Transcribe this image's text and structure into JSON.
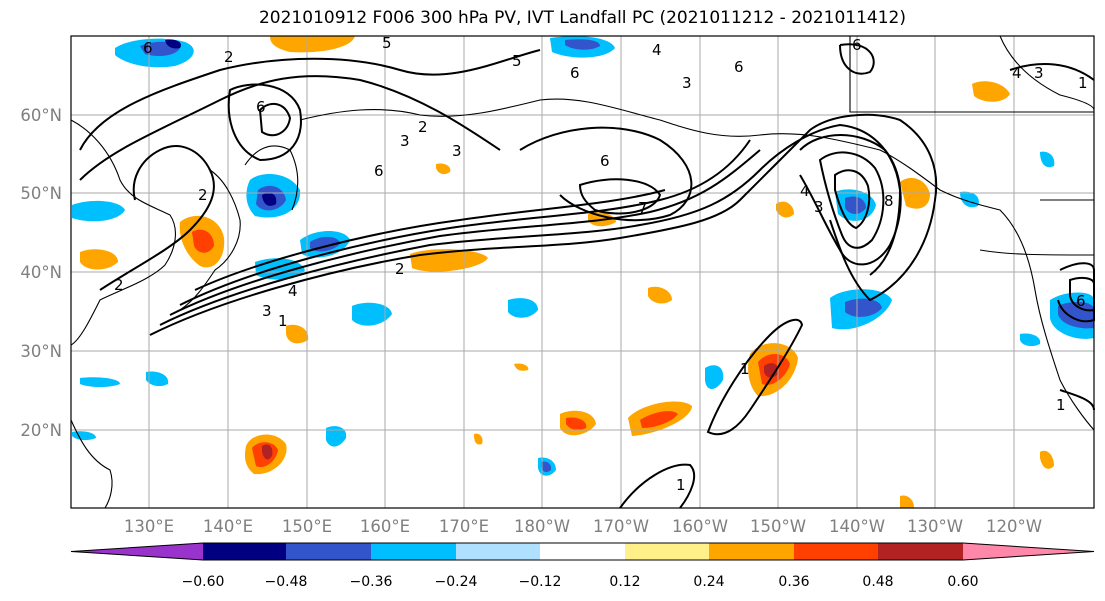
{
  "title": "2021010912 F006 300 hPa PV, IVT Landfall PC (2021011212 - 2021011412)",
  "map": {
    "lon_labels": [
      "130°E",
      "140°E",
      "150°E",
      "160°E",
      "170°E",
      "180°W",
      "170°W",
      "160°W",
      "150°W",
      "140°W",
      "130°W",
      "120°W"
    ],
    "lat_labels": [
      "60°N",
      "50°N",
      "40°N",
      "30°N",
      "20°N"
    ]
  },
  "colorbar": {
    "colors": [
      "#9933cc",
      "#000080",
      "#3355cc",
      "#00bfff",
      "#b0e0ff",
      "#ffffff",
      "#fff08a",
      "#ffa500",
      "#ff4000",
      "#b22222",
      "#ff88aa"
    ],
    "tick_labels": [
      "−0.60",
      "−0.48",
      "−0.36",
      "−0.24",
      "−0.12",
      "0.12",
      "0.24",
      "0.36",
      "0.48",
      "0.60"
    ]
  },
  "contour_labels": [
    "6",
    "2",
    "5",
    "6",
    "4",
    "3",
    "6",
    "2",
    "3",
    "6",
    "2",
    "6",
    "3",
    "2",
    "2",
    "4",
    "1",
    "3",
    "7",
    "6",
    "5",
    "4",
    "3",
    "8",
    "6",
    "1",
    "1",
    "6",
    "4",
    "3",
    "1",
    "1"
  ]
}
